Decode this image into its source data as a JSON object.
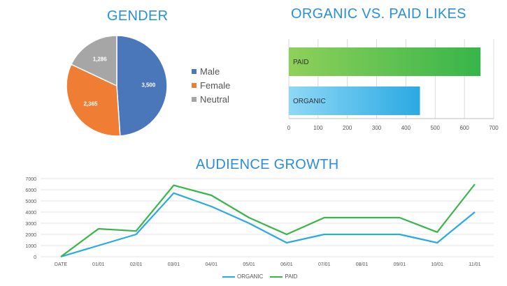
{
  "chart_data": [
    {
      "type": "pie",
      "title": "GENDER",
      "categories": [
        "Male",
        "Female",
        "Neutral"
      ],
      "values": [
        3500,
        2365,
        1286
      ],
      "value_labels": [
        "3,500",
        "2,365",
        "1,286"
      ],
      "colors": [
        "#4a76ba",
        "#f07d34",
        "#a6a6a6"
      ]
    },
    {
      "type": "bar",
      "orientation": "horizontal",
      "title": "ORGANIC VS. PAID LIKES",
      "categories": [
        "PAID",
        "ORGANIC"
      ],
      "values": [
        655,
        448
      ],
      "xlim": [
        0,
        700
      ],
      "xticks": [
        "0",
        "100",
        "200",
        "300",
        "400",
        "500",
        "600",
        "700"
      ],
      "colors": [
        "#4dbf4a",
        "#48b8e8"
      ]
    },
    {
      "type": "line",
      "title": "AUDIENCE GROWTH",
      "categories": [
        "DATE",
        "01/01",
        "02/01",
        "03/01",
        "04/01",
        "05/01",
        "06/01",
        "07/01",
        "08/01",
        "09/01",
        "10/01",
        "11/01"
      ],
      "series": [
        {
          "name": "ORGANIC",
          "color": "#29abe2",
          "values": [
            0,
            1000,
            2000,
            5700,
            4500,
            3000,
            1250,
            2000,
            2000,
            2000,
            1250,
            4000
          ]
        },
        {
          "name": "PAID",
          "color": "#3ab54a",
          "values": [
            0,
            2500,
            2300,
            6400,
            5500,
            3500,
            2000,
            3500,
            3500,
            3500,
            2200,
            6500
          ]
        }
      ],
      "ylim": [
        0,
        7000
      ],
      "yticks": [
        "0",
        "1000",
        "2000",
        "3000",
        "4000",
        "5000",
        "6000",
        "7000"
      ]
    }
  ]
}
